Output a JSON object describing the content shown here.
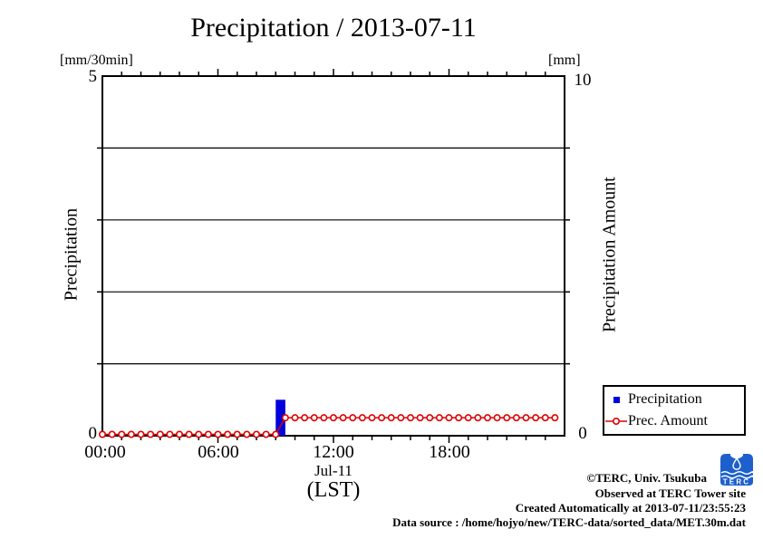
{
  "title": "Precipitation / 2013-07-11",
  "axes": {
    "left": {
      "unit": "[mm/30min]",
      "label": "Precipitation",
      "top_tick": "5",
      "bottom_tick": "0"
    },
    "right": {
      "unit": "[mm]",
      "label": "Precipitation Amount",
      "top_tick": "10",
      "bottom_tick": "0"
    },
    "x": {
      "tick_labels": [
        "00:00",
        "06:00",
        "12:00",
        "18:00"
      ],
      "date_label": "Jul-11",
      "tz_label": "(LST)"
    }
  },
  "legend": {
    "items": [
      {
        "label": "Precipitation",
        "marker": "blue-square"
      },
      {
        "label": "Prec. Amount",
        "marker": "red-circle-line"
      }
    ]
  },
  "credits": [
    "©TERC, Univ. Tsukuba",
    "Observed at TERC Tower site",
    "Created Automatically at 2013-07-11/23:55:23",
    "Data source : /home/hojyo/new/TERC-data/sorted_data/MET.30m.dat"
  ],
  "logo": {
    "text": "TERC",
    "color": "#1d60cd"
  },
  "colors": {
    "bar": "#0000dd",
    "line": "#dd0000",
    "frame": "#000000"
  },
  "chart_data": {
    "type": "bar+line",
    "title": "Precipitation / 2013-07-11",
    "x_min_hour": 0,
    "x_max_hour": 24,
    "major_tick_hours": 6,
    "minor_tick_hours": 1,
    "left_ylim": [
      0,
      5
    ],
    "right_ylim": [
      0,
      10
    ],
    "grid_left_values": [
      1,
      2,
      3,
      4
    ],
    "grid_on": true,
    "legend_position": "bottom-right-outside",
    "x_hours": [
      0,
      0.5,
      1,
      1.5,
      2,
      2.5,
      3,
      3.5,
      4,
      4.5,
      5,
      5.5,
      6,
      6.5,
      7,
      7.5,
      8,
      8.5,
      9,
      9.5,
      10,
      10.5,
      11,
      11.5,
      12,
      12.5,
      13,
      13.5,
      14,
      14.5,
      15,
      15.5,
      16,
      16.5,
      17,
      17.5,
      18,
      18.5,
      19,
      19.5,
      20,
      20.5,
      21,
      21.5,
      22,
      22.5,
      23,
      23.5
    ],
    "series": [
      {
        "name": "Precipitation",
        "type": "bar",
        "axis": "left",
        "unit": "mm/30min",
        "values": [
          0,
          0,
          0,
          0,
          0,
          0,
          0,
          0,
          0,
          0,
          0,
          0,
          0,
          0,
          0,
          0,
          0,
          0,
          0,
          0.5,
          0,
          0,
          0,
          0,
          0,
          0,
          0,
          0,
          0,
          0,
          0,
          0,
          0,
          0,
          0,
          0,
          0,
          0,
          0,
          0,
          0,
          0,
          0,
          0,
          0,
          0,
          0,
          0
        ]
      },
      {
        "name": "Prec. Amount",
        "type": "line",
        "axis": "right",
        "unit": "mm",
        "values": [
          0,
          0,
          0,
          0,
          0,
          0,
          0,
          0,
          0,
          0,
          0,
          0,
          0,
          0,
          0,
          0,
          0,
          0,
          0,
          0.5,
          0.5,
          0.5,
          0.5,
          0.5,
          0.5,
          0.5,
          0.5,
          0.5,
          0.5,
          0.5,
          0.5,
          0.5,
          0.5,
          0.5,
          0.5,
          0.5,
          0.5,
          0.5,
          0.5,
          0.5,
          0.5,
          0.5,
          0.5,
          0.5,
          0.5,
          0.5,
          0.5,
          0.5
        ]
      }
    ]
  }
}
